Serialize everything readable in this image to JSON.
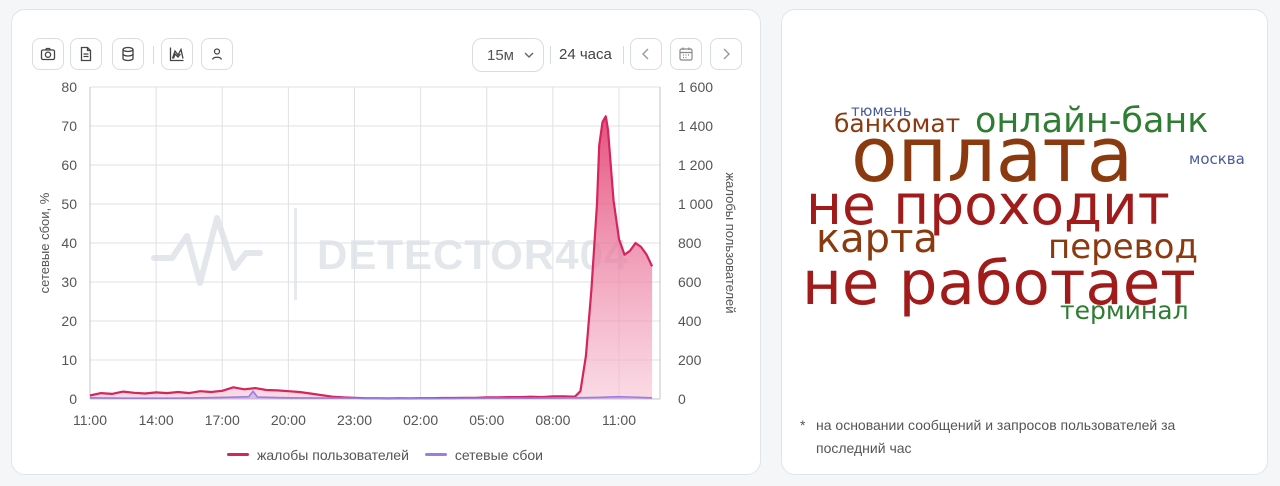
{
  "toolbar": {
    "buttons": [
      {
        "name": "screenshot-button",
        "icon": "camera-icon"
      },
      {
        "name": "report-button",
        "icon": "document-icon"
      },
      {
        "name": "database-button",
        "icon": "database-icon"
      },
      {
        "name": "chart-type-button",
        "icon": "area-chart-icon"
      },
      {
        "name": "user-button",
        "icon": "user-icon"
      }
    ],
    "interval_value": "15м",
    "period_label": "24 часа"
  },
  "watermark": "DETECTOR404",
  "chart_data": {
    "type": "line",
    "x_labels": [
      "11:00",
      "14:00",
      "17:00",
      "20:00",
      "23:00",
      "02:00",
      "05:00",
      "08:00",
      "11:00"
    ],
    "y_left": {
      "label": "сетевые сбои, %",
      "ticks": [
        "0",
        "10",
        "20",
        "30",
        "40",
        "50",
        "60",
        "70",
        "80"
      ],
      "range": [
        0,
        80
      ]
    },
    "y_right": {
      "label": "жалобы пользователей",
      "ticks": [
        "0",
        "200",
        "400",
        "600",
        "800",
        "1 000",
        "1 200",
        "1 400",
        "1 600"
      ],
      "range": [
        0,
        1600
      ]
    },
    "grid": true,
    "legend_position": "bottom",
    "series": [
      {
        "name": "жалобы пользователей",
        "axis": "right",
        "color": "#d6245c",
        "x_hours": [
          0,
          0.5,
          1,
          1.5,
          2,
          2.5,
          3,
          3.5,
          4,
          4.5,
          5,
          5.5,
          6,
          6.5,
          7,
          7.5,
          8,
          8.5,
          9,
          9.5,
          10,
          10.5,
          11,
          11.5,
          12,
          12.5,
          13,
          13.5,
          14,
          14.5,
          15,
          15.5,
          16,
          16.5,
          17,
          17.5,
          18,
          18.5,
          19,
          19.5,
          20,
          20.5,
          21,
          21.5,
          22,
          22.25,
          22.5,
          22.75,
          23,
          23.1,
          23.25,
          23.4,
          23.5,
          23.75,
          24,
          24.25,
          24.5,
          24.75,
          25,
          25.25,
          25.5
        ],
        "values": [
          18,
          30,
          26,
          38,
          32,
          28,
          34,
          30,
          36,
          30,
          40,
          36,
          42,
          60,
          50,
          56,
          46,
          44,
          40,
          36,
          28,
          20,
          12,
          8,
          6,
          4,
          4,
          3,
          4,
          3,
          4,
          4,
          5,
          5,
          6,
          6,
          8,
          8,
          10,
          10,
          12,
          10,
          14,
          14,
          12,
          40,
          220,
          560,
          1000,
          1300,
          1420,
          1450,
          1380,
          1020,
          820,
          740,
          760,
          800,
          780,
          740,
          680
        ]
      },
      {
        "name": "сетевые сбои",
        "axis": "left",
        "color": "#9b7fe0",
        "x_hours": [
          0,
          2,
          4,
          6,
          7.2,
          7.4,
          7.6,
          9,
          12,
          15,
          18,
          20,
          22,
          23,
          24,
          25,
          25.5
        ],
        "values": [
          0.3,
          0.2,
          0.2,
          0.4,
          0.6,
          2.0,
          0.5,
          0.3,
          0.2,
          0.1,
          0.2,
          0.2,
          0.3,
          0.4,
          0.6,
          0.4,
          0.3
        ]
      }
    ]
  },
  "word_cloud": {
    "words": [
      {
        "text": "тюмень",
        "color": "#4b5a9e"
      },
      {
        "text": "банкомат",
        "color": "#8b3a0f"
      },
      {
        "text": "онлайн-банк",
        "color": "#2e7d32"
      },
      {
        "text": "оплата",
        "color": "#8b3a0f"
      },
      {
        "text": "москва",
        "color": "#4b5a9e"
      },
      {
        "text": "не проходит",
        "color": "#a11b1b"
      },
      {
        "text": "карта",
        "color": "#8b3a0f"
      },
      {
        "text": "перевод",
        "color": "#8b3a0f"
      },
      {
        "text": "не работает",
        "color": "#a11b1b"
      },
      {
        "text": "терминал",
        "color": "#2e7d32"
      }
    ],
    "note_marker": "*",
    "note": "на основании сообщений и запросов пользователей за последний час"
  }
}
